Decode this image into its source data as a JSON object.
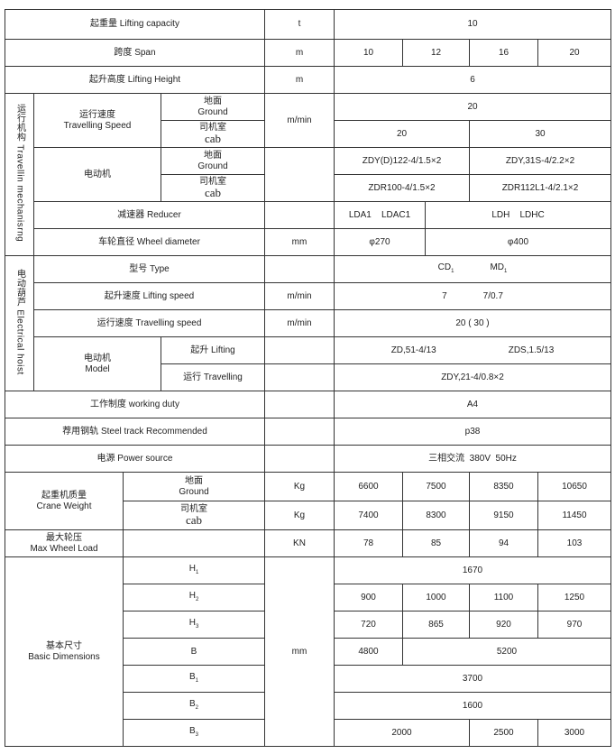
{
  "lifting_capacity": {
    "label": "起重量 Lifting capacity",
    "unit": "t",
    "value": "10"
  },
  "span": {
    "label": "跨度 Span",
    "unit": "m",
    "values": [
      "10",
      "12",
      "16",
      "20"
    ]
  },
  "lifting_height": {
    "label": "起升高度 Lifting Height",
    "unit": "m",
    "value": "6"
  },
  "travelling_mechanism": {
    "group_label": "运行机构 Travellin mechanisrng",
    "speed": {
      "label_cn": "运行速度",
      "label_en": "Travelling Speed",
      "unit": "m/min",
      "ground": {
        "cn": "地面",
        "en": "Ground",
        "value": "20"
      },
      "cab": {
        "cn": "司机室",
        "en": "cab",
        "values": [
          "20",
          "30"
        ]
      }
    },
    "motor": {
      "label": "电动机",
      "ground": {
        "cn": "地面",
        "en": "Ground",
        "values": [
          "ZDY(D)122-4/1.5×2",
          "ZDY,31S-4/2.2×2"
        ]
      },
      "cab": {
        "cn": "司机室",
        "en": "cab",
        "values": [
          "ZDR100-4/1.5×2",
          "ZDR112L1-4/2.1×2"
        ]
      }
    },
    "reducer": {
      "label": "减速器 Reducer",
      "values": [
        "LDA1    LDAC1",
        "LDH    LDHC"
      ]
    },
    "wheel": {
      "label": "车轮直径 Wheel diameter",
      "unit": "mm",
      "values": [
        "φ270",
        "φ400"
      ]
    }
  },
  "hoist": {
    "group_label": "电动葫芦 Electrical hoist",
    "type": {
      "label": "型号 Type",
      "values": [
        "CD",
        "MD"
      ],
      "sub": "1"
    },
    "lifting_speed": {
      "label": "起升速度 Lifting speed",
      "unit": "m/min",
      "values": [
        "7",
        "7/0.7"
      ]
    },
    "travelling_speed": {
      "label": "运行速度 Travelling speed",
      "unit": "m/min",
      "value": "20 ( 30 )"
    },
    "motor": {
      "label_cn": "电动机",
      "label_en": "Model",
      "lifting": {
        "label": "起升 Lifting",
        "values": [
          "ZD,51-4/13",
          "ZDS,1.5/13"
        ]
      },
      "travelling": {
        "label": "运行 Travelling",
        "value": "ZDY,21-4/0.8×2"
      }
    }
  },
  "working_duty": {
    "label": "工作制度 working duty",
    "value": "A4"
  },
  "steel_track": {
    "label": "荐用钢轨 Steel track Recommended",
    "value": "p38"
  },
  "power": {
    "label": "电源 Power source",
    "value": "三相交流  380V  50Hz"
  },
  "crane_weight": {
    "label_cn": "起重机质量",
    "label_en": "Crane Weight",
    "ground": {
      "cn": "地面",
      "en": "Ground",
      "unit": "Kg",
      "values": [
        "6600",
        "7500",
        "8350",
        "10650"
      ]
    },
    "cab": {
      "cn": "司机室",
      "en": "cab",
      "unit": "Kg",
      "values": [
        "7400",
        "8300",
        "9150",
        "11450"
      ]
    }
  },
  "max_wheel_load": {
    "label_cn": "最大轮压",
    "label_en": "Max Wheel Load",
    "unit": "KN",
    "values": [
      "78",
      "85",
      "94",
      "103"
    ]
  },
  "dimensions": {
    "label_cn": "基本尺寸",
    "label_en": "Basic Dimensions",
    "unit": "mm",
    "H1": {
      "sym": "H",
      "sub": "1",
      "value": "1670"
    },
    "H2": {
      "sym": "H",
      "sub": "2",
      "values": [
        "900",
        "1000",
        "1100",
        "1250"
      ]
    },
    "H3": {
      "sym": "H",
      "sub": "3",
      "values": [
        "720",
        "865",
        "920",
        "970"
      ]
    },
    "B": {
      "sym": "B",
      "values": [
        "4800",
        "5200"
      ]
    },
    "B1": {
      "sym": "B",
      "sub": "1",
      "value": "3700"
    },
    "B2": {
      "sym": "B",
      "sub": "2",
      "value": "1600"
    },
    "B3": {
      "sym": "B",
      "sub": "3",
      "values": [
        "2000",
        "2500",
        "3000"
      ]
    }
  }
}
